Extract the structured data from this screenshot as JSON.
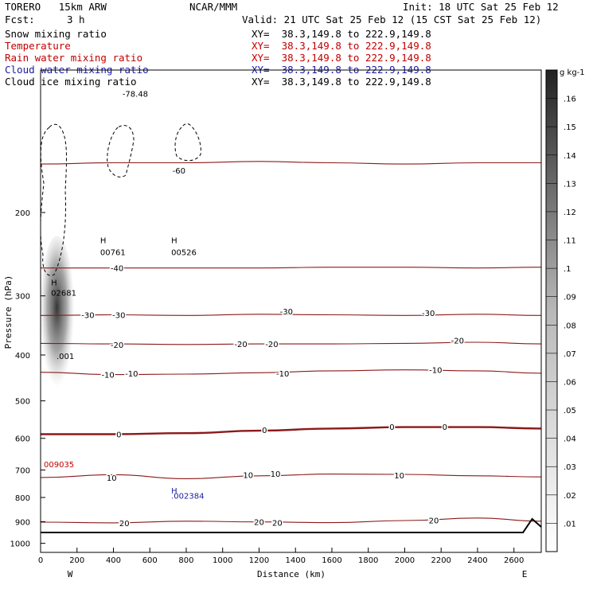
{
  "header": {
    "model": "TORERO   15km ARW",
    "center": "NCAR/MMM",
    "init": "Init: 18 UTC Sat 25 Feb 12",
    "fcst_label": "Fcst:",
    "fcst_value": "3 h",
    "valid": "Valid: 21 UTC Sat 25 Feb 12 (15 CST Sat 25 Feb 12)"
  },
  "fields": [
    {
      "name": "Snow mixing ratio",
      "xy": "XY=  38.3,149.8 to 222.9,149.8",
      "color": "#000000"
    },
    {
      "name": "Temperature",
      "xy": "XY=  38.3,149.8 to 222.9,149.8",
      "color": "#c00000"
    },
    {
      "name": "Rain water mixing ratio",
      "xy": "XY=  38.3,149.8 to 222.9,149.8",
      "color": "#c00000"
    },
    {
      "name": "Cloud water mixing ratio",
      "xy": "XY=  38.3,149.8 to 222.9,149.8",
      "color": "#1a1aa0"
    },
    {
      "name": "Cloud ice mixing ratio",
      "xy": "XY=  38.3,149.8 to 222.9,149.8",
      "color": "#000000"
    }
  ],
  "colors": {
    "temperature": "#8b1a1a",
    "rain": "#c00000",
    "cloud_water": "#1a1aa0",
    "axes": "#000000"
  },
  "chart_data": {
    "type": "heatmap",
    "xlabel": "Distance (km)",
    "ylabel": "Pressure (hPa)",
    "x_ticks": [
      0,
      200,
      400,
      600,
      800,
      1000,
      1200,
      1400,
      1600,
      1800,
      2000,
      2200,
      2400,
      2600
    ],
    "y_ticks": [
      200,
      300,
      400,
      500,
      600,
      700,
      800,
      900,
      1000
    ],
    "xlim": [
      0,
      2750
    ],
    "ylim": [
      1045,
      100
    ],
    "y_scale": "log",
    "west_label": "W",
    "east_label": "E",
    "colorbar": {
      "unit": "g kg-1",
      "ticks": [
        ".01",
        ".02",
        ".03",
        ".04",
        ".05",
        ".06",
        ".07",
        ".08",
        ".09",
        ".1",
        ".11",
        ".12",
        ".13",
        ".14",
        ".15",
        ".16"
      ],
      "range": [
        0,
        0.17
      ]
    },
    "shaded_snow_max": {
      "x_km": 90,
      "p_hpa": 330,
      "value": 0.16
    },
    "temperature_isotherms": [
      {
        "label": "-60",
        "x": [
          0,
          400,
          800,
          1200,
          1600,
          2000,
          2400,
          2750
        ],
        "p": [
          158,
          157,
          157,
          156,
          157,
          158,
          157,
          157
        ]
      },
      {
        "label": "-40",
        "x": [
          0,
          400,
          800,
          1200,
          1600,
          2000,
          2400,
          2750
        ],
        "p": [
          262,
          262,
          262,
          262,
          261,
          261,
          262,
          261
        ]
      },
      {
        "label": "-30",
        "x": [
          0,
          400,
          800,
          1200,
          1600,
          2000,
          2400,
          2750
        ],
        "p": [
          330,
          329,
          330,
          328,
          329,
          330,
          328,
          330
        ]
      },
      {
        "label": "-20",
        "x": [
          0,
          400,
          800,
          1200,
          1600,
          2000,
          2400,
          2750
        ],
        "p": [
          378,
          379,
          380,
          379,
          379,
          378,
          376,
          379
        ]
      },
      {
        "label": "-10",
        "x": [
          0,
          400,
          800,
          1200,
          1600,
          2000,
          2400,
          2750
        ],
        "p": [
          435,
          440,
          439,
          436,
          432,
          430,
          432,
          437
        ]
      },
      {
        "label": "0",
        "x": [
          0,
          400,
          800,
          1200,
          1600,
          2000,
          2400,
          2750
        ],
        "p": [
          588,
          588,
          585,
          578,
          572,
          568,
          568,
          572
        ]
      },
      {
        "label": "10",
        "x": [
          0,
          400,
          800,
          1200,
          1600,
          2000,
          2400,
          2750
        ],
        "p": [
          726,
          716,
          730,
          720,
          714,
          715,
          720,
          724
        ]
      },
      {
        "label": "20",
        "x": [
          0,
          400,
          800,
          1200,
          1600,
          2000,
          2400,
          2750
        ],
        "p": [
          902,
          905,
          898,
          901,
          904,
          895,
          884,
          898
        ]
      }
    ],
    "temperature_labels": [
      {
        "text": "-78.48",
        "x": 520,
        "p": 112
      },
      {
        "text": "-60",
        "x": 760,
        "p": 163
      },
      {
        "text": "-40",
        "x": 420,
        "p": 262
      },
      {
        "text": "-30",
        "x": 260,
        "p": 329
      },
      {
        "text": "-30",
        "x": 430,
        "p": 329
      },
      {
        "text": "-30",
        "x": 1350,
        "p": 323
      },
      {
        "text": "-30",
        "x": 2130,
        "p": 326
      },
      {
        "text": "-20",
        "x": 420,
        "p": 380
      },
      {
        "text": "-20",
        "x": 1100,
        "p": 379
      },
      {
        "text": "-20",
        "x": 1270,
        "p": 379
      },
      {
        "text": "-20",
        "x": 2290,
        "p": 372
      },
      {
        "text": "-10",
        "x": 370,
        "p": 440
      },
      {
        "text": "-10",
        "x": 500,
        "p": 437
      },
      {
        "text": "-10",
        "x": 1330,
        "p": 437
      },
      {
        "text": "-10",
        "x": 2170,
        "p": 430
      },
      {
        "text": "0",
        "x": 430,
        "p": 588
      },
      {
        "text": "0",
        "x": 1230,
        "p": 576
      },
      {
        "text": "0",
        "x": 1930,
        "p": 567
      },
      {
        "text": "0",
        "x": 2220,
        "p": 567
      },
      {
        "text": "10",
        "x": 390,
        "p": 726
      },
      {
        "text": "10",
        "x": 1140,
        "p": 717
      },
      {
        "text": "10",
        "x": 1290,
        "p": 712
      },
      {
        "text": "10",
        "x": 1970,
        "p": 718
      },
      {
        "text": "20",
        "x": 460,
        "p": 906
      },
      {
        "text": "20",
        "x": 1200,
        "p": 900
      },
      {
        "text": "20",
        "x": 1300,
        "p": 904
      },
      {
        "text": "20",
        "x": 2160,
        "p": 893
      }
    ],
    "annotations": [
      {
        "text": "H",
        "x": 40,
        "p": 285,
        "color": "#000000"
      },
      {
        "text": "02681",
        "x": 40,
        "p": 300,
        "color": "#000000"
      },
      {
        "text": ".001",
        "x": 70,
        "p": 408,
        "color": "#000000"
      },
      {
        "text": "H",
        "x": 310,
        "p": 232,
        "color": "#000000"
      },
      {
        "text": "00761",
        "x": 310,
        "p": 246,
        "color": "#000000"
      },
      {
        "text": "H",
        "x": 700,
        "p": 232,
        "color": "#000000"
      },
      {
        "text": "00526",
        "x": 700,
        "p": 246,
        "color": "#000000"
      },
      {
        "text": "009035",
        "x": 0,
        "p": 690,
        "color": "#c00000"
      },
      {
        "text": "H",
        "x": 700,
        "p": 785,
        "color": "#1a1aa0"
      },
      {
        "text": ".002384",
        "x": 700,
        "p": 804,
        "color": "#1a1aa0"
      }
    ]
  }
}
